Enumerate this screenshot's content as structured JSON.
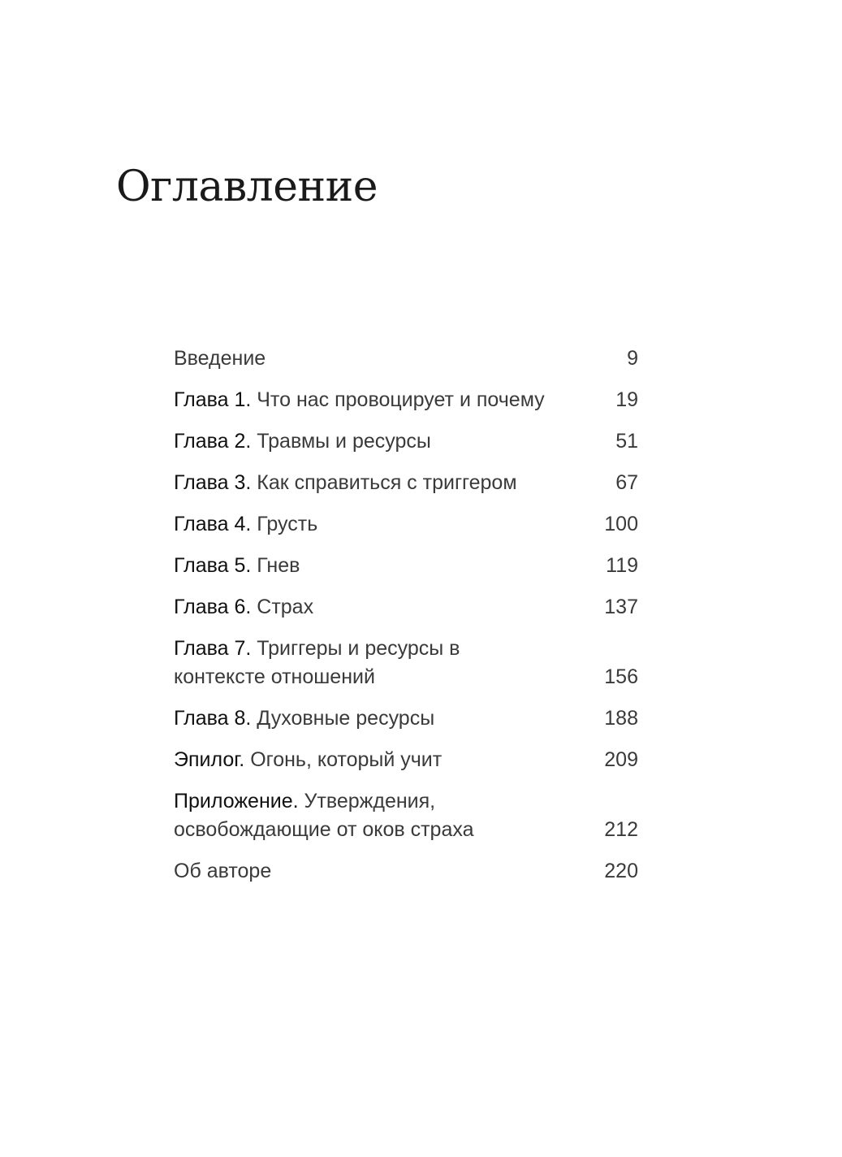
{
  "title": "Оглавление",
  "entries": [
    {
      "label": "",
      "text": "Введение",
      "page": "9"
    },
    {
      "label": "Глава 1.",
      "text": " Что нас провоцирует и почему",
      "page": "19"
    },
    {
      "label": "Глава 2.",
      "text": " Травмы и ресурсы",
      "page": "51"
    },
    {
      "label": "Глава 3.",
      "text": " Как справиться с триггером",
      "page": "67"
    },
    {
      "label": "Глава 4.",
      "text": " Грусть",
      "page": "100"
    },
    {
      "label": "Глава 5.",
      "text": " Гнев",
      "page": "119"
    },
    {
      "label": "Глава 6.",
      "text": " Страх",
      "page": "137"
    },
    {
      "label": "Глава 7.",
      "text": " Триггеры и ресурсы в контексте отношений",
      "page": "156"
    },
    {
      "label": "Глава 8.",
      "text": " Духовные ресурсы",
      "page": "188"
    },
    {
      "label": "Эпилог.",
      "text": " Огонь, который учит",
      "page": "209"
    },
    {
      "label": "Приложение.",
      "text": " Утверждения, освобождающие от оков страха",
      "page": "212"
    },
    {
      "label": "",
      "text": "Об авторе",
      "page": "220"
    }
  ]
}
